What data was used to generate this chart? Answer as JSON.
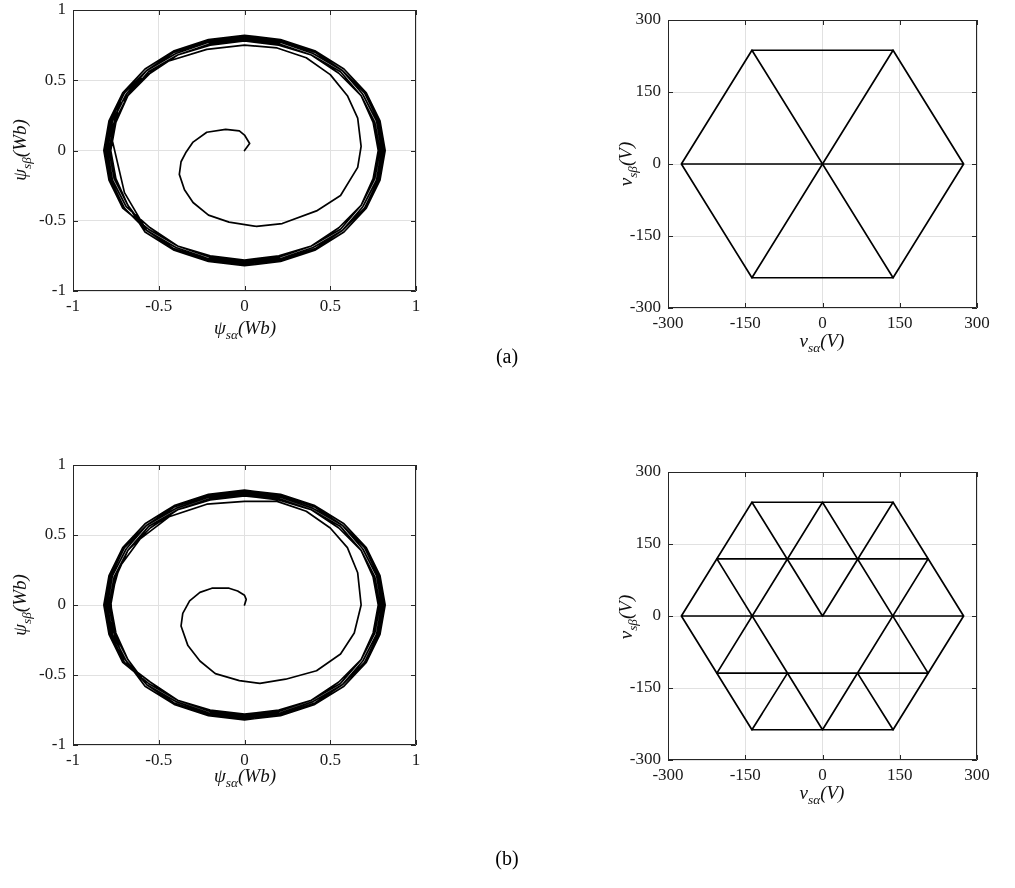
{
  "chart_data": [
    {
      "type": "line",
      "xlabel": "ψ$_{sα}$(Wb)",
      "ylabel": "ψ$_{sβ}$(Wb)",
      "xlim": [
        -1,
        1
      ],
      "ylim": [
        -1,
        1
      ],
      "xticks": [
        -1,
        -0.5,
        0,
        0.5,
        1
      ],
      "yticks": [
        -1,
        -0.5,
        0,
        0.5,
        1
      ],
      "grid": true,
      "marker": "none",
      "annotations": [
        "(a)"
      ],
      "series": [
        {
          "color": "#000000",
          "x": [
            0,
            0.03,
            0,
            -0.03,
            -0.11,
            -0.22,
            -0.3,
            -0.34,
            -0.37,
            -0.38,
            -0.35,
            -0.3,
            -0.21,
            -0.09,
            0.07,
            0.22,
            0.42,
            0.56,
            0.66,
            0.68,
            0.66,
            0.6,
            0.5,
            0.36,
            0.19,
            0,
            -0.22,
            -0.46,
            -0.61,
            -0.73,
            -0.78,
            -0.7,
            -0.57,
            -0.4,
            -0.21,
            0,
            0.21,
            0.4,
            0.57,
            0.69,
            0.77,
            0.8,
            0.77,
            0.69,
            0.57,
            0.4,
            0.21,
            0,
            -0.21,
            -0.4,
            -0.57,
            -0.69,
            -0.77,
            -0.8,
            -0.77,
            -0.69,
            -0.55,
            -0.39,
            -0.2,
            0,
            0.2,
            0.39,
            0.55,
            0.68,
            0.75,
            0.78,
            0.75,
            0.68,
            0.55,
            0.39,
            0.2,
            0,
            -0.2,
            -0.39,
            -0.55,
            -0.68,
            -0.75,
            -0.78,
            -0.75,
            -0.68,
            -0.58,
            -0.41,
            -0.21,
            0,
            0.21,
            0.41,
            0.58,
            0.71,
            0.79,
            0.82,
            0.79,
            0.71,
            0.58,
            0.41,
            0.21,
            0,
            -0.21,
            -0.41,
            -0.58,
            -0.71,
            -0.79,
            -0.82,
            -0.79,
            -0.71,
            -0.56,
            -0.39,
            -0.2,
            0,
            0.2,
            0.39,
            0.56,
            0.68,
            0.76,
            0.79,
            0.76,
            0.68,
            0.56,
            0.39,
            0.2,
            0,
            -0.2,
            -0.39,
            -0.56,
            -0.68,
            -0.76,
            -0.79,
            -0.76,
            -0.68,
            -0.57,
            -0.41,
            -0.21,
            0,
            0.21,
            0.41,
            0.57,
            0.7,
            0.78,
            0.81,
            0.78,
            0.7,
            0.57,
            0.41,
            0.21,
            0,
            -0.21,
            -0.41,
            -0.57,
            -0.7,
            -0.78,
            -0.81,
            -0.78,
            -0.7,
            -0.57
          ],
          "values": [
            0,
            0.05,
            0.11,
            0.14,
            0.15,
            0.13,
            0.06,
            -0.01,
            -0.08,
            -0.17,
            -0.28,
            -0.37,
            -0.46,
            -0.51,
            -0.54,
            -0.52,
            -0.43,
            -0.32,
            -0.12,
            0.03,
            0.23,
            0.39,
            0.54,
            0.66,
            0.73,
            0.75,
            0.72,
            0.63,
            0.5,
            0.32,
            0.12,
            -0.3,
            -0.57,
            -0.69,
            -0.77,
            -0.8,
            -0.77,
            -0.69,
            -0.57,
            -0.4,
            -0.21,
            0,
            0.21,
            0.4,
            0.57,
            0.69,
            0.77,
            0.8,
            0.77,
            0.69,
            0.57,
            0.4,
            0.21,
            0,
            -0.21,
            -0.4,
            -0.55,
            -0.68,
            -0.75,
            -0.78,
            -0.75,
            -0.68,
            -0.55,
            -0.39,
            -0.2,
            0,
            0.2,
            0.39,
            0.55,
            0.68,
            0.75,
            0.78,
            0.75,
            0.68,
            0.55,
            0.39,
            0.2,
            0,
            -0.2,
            -0.39,
            -0.58,
            -0.71,
            -0.79,
            -0.82,
            -0.79,
            -0.71,
            -0.58,
            -0.41,
            -0.21,
            0,
            0.21,
            0.41,
            0.58,
            0.71,
            0.79,
            0.82,
            0.79,
            0.71,
            0.58,
            0.41,
            0.21,
            0,
            -0.21,
            -0.41,
            -0.56,
            -0.68,
            -0.76,
            -0.79,
            -0.76,
            -0.68,
            -0.56,
            -0.39,
            -0.2,
            0,
            0.2,
            0.39,
            0.56,
            0.68,
            0.76,
            0.79,
            0.76,
            0.68,
            0.56,
            0.39,
            0.2,
            0,
            -0.2,
            -0.39,
            -0.57,
            -0.7,
            -0.78,
            -0.81,
            -0.78,
            -0.7,
            -0.57,
            -0.41,
            -0.21,
            0,
            0.21,
            0.41,
            0.57,
            0.7,
            0.78,
            0.81,
            0.78,
            0.7,
            0.57,
            0.41,
            0.21,
            0,
            -0.21,
            -0.41,
            -0.57
          ]
        }
      ]
    },
    {
      "type": "line",
      "xlabel": "v$_{sα}$(V)",
      "ylabel": "v$_{sβ}$(V)",
      "xlim": [
        -300,
        300
      ],
      "ylim": [
        -300,
        300
      ],
      "xticks": [
        -300,
        -150,
        0,
        150,
        300
      ],
      "yticks": [
        -300,
        -150,
        0,
        150,
        300
      ],
      "grid": true,
      "marker": "none",
      "series": [
        {
          "color": "#000000",
          "x": [
            274,
            137,
            -137,
            -274,
            -137,
            137,
            274,
            -274
          ],
          "values": [
            0,
            237,
            237,
            0,
            -237,
            -237,
            0,
            0
          ]
        },
        {
          "color": "#000000",
          "x": [
            -137,
            137
          ],
          "values": [
            237,
            -237
          ]
        },
        {
          "color": "#000000",
          "x": [
            137,
            -137
          ],
          "values": [
            237,
            -237
          ]
        }
      ]
    },
    {
      "type": "line",
      "xlabel": "ψ$_{sα}$(Wb)",
      "ylabel": "ψ$_{sβ}$(Wb)",
      "xlim": [
        -1,
        1
      ],
      "ylim": [
        -1,
        1
      ],
      "xticks": [
        -1,
        -0.5,
        0,
        0.5,
        1
      ],
      "yticks": [
        -1,
        -0.5,
        0,
        0.5,
        1
      ],
      "grid": true,
      "marker": "none",
      "annotations": [
        "(b)"
      ],
      "series": [
        {
          "color": "#000000",
          "x": [
            0,
            0.01,
            0,
            -0.04,
            -0.09,
            -0.19,
            -0.26,
            -0.32,
            -0.36,
            -0.37,
            -0.33,
            -0.26,
            -0.17,
            -0.03,
            0.09,
            0.24,
            0.42,
            0.56,
            0.64,
            0.68,
            0.66,
            0.6,
            0.5,
            0.36,
            0.19,
            0,
            -0.22,
            -0.44,
            -0.61,
            -0.73,
            -0.78,
            -0.77,
            -0.71,
            -0.57,
            -0.4,
            -0.21,
            0,
            0.21,
            0.4,
            0.57,
            0.69,
            0.77,
            0.8,
            0.77,
            0.69,
            0.57,
            0.4,
            0.21,
            0,
            -0.21,
            -0.4,
            -0.57,
            -0.69,
            -0.77,
            -0.8,
            -0.77,
            -0.69,
            -0.58,
            -0.41,
            -0.21,
            0,
            0.21,
            0.41,
            0.58,
            0.71,
            0.79,
            0.82,
            0.79,
            0.71,
            0.58,
            0.41,
            0.21,
            0,
            -0.21,
            -0.41,
            -0.58,
            -0.71,
            -0.79,
            -0.82,
            -0.79,
            -0.71,
            -0.56,
            -0.39,
            -0.2,
            0,
            0.2,
            0.39,
            0.56,
            0.68,
            0.76,
            0.79,
            0.76,
            0.68,
            0.56,
            0.39,
            0.2,
            0,
            -0.2,
            -0.39,
            -0.56,
            -0.68,
            -0.76,
            -0.79,
            -0.76,
            -0.68,
            -0.57,
            -0.41,
            -0.21,
            0,
            0.21,
            0.41,
            0.57,
            0.7,
            0.78,
            0.81,
            0.78,
            0.7,
            0.57,
            0.41,
            0.21,
            0,
            -0.21,
            -0.41,
            -0.57,
            -0.7,
            -0.78,
            -0.81,
            -0.78,
            -0.7,
            -0.55,
            -0.39,
            -0.2,
            0,
            0.2,
            0.39,
            0.55,
            0.68,
            0.75,
            0.78,
            0.75,
            0.68,
            0.55,
            0.39,
            0.2,
            0,
            -0.2,
            -0.39,
            -0.55,
            -0.68,
            -0.75,
            -0.78,
            -0.75,
            -0.68,
            -0.57
          ],
          "values": [
            0,
            0.04,
            0.07,
            0.1,
            0.12,
            0.12,
            0.09,
            0.03,
            -0.06,
            -0.15,
            -0.29,
            -0.4,
            -0.49,
            -0.54,
            -0.56,
            -0.53,
            -0.47,
            -0.35,
            -0.2,
            0,
            0.23,
            0.41,
            0.55,
            0.67,
            0.74,
            0.74,
            0.72,
            0.63,
            0.47,
            0.27,
            0.05,
            -0.17,
            -0.37,
            -0.57,
            -0.69,
            -0.77,
            -0.8,
            -0.77,
            -0.69,
            -0.57,
            -0.4,
            -0.21,
            0,
            0.21,
            0.4,
            0.57,
            0.69,
            0.77,
            0.8,
            0.77,
            0.69,
            0.57,
            0.4,
            0.21,
            0,
            -0.21,
            -0.4,
            -0.58,
            -0.71,
            -0.79,
            -0.82,
            -0.79,
            -0.71,
            -0.58,
            -0.41,
            -0.21,
            0,
            0.21,
            0.41,
            0.58,
            0.71,
            0.79,
            0.82,
            0.79,
            0.71,
            0.58,
            0.41,
            0.21,
            0,
            -0.21,
            -0.41,
            -0.56,
            -0.68,
            -0.76,
            -0.79,
            -0.76,
            -0.68,
            -0.56,
            -0.39,
            -0.2,
            0,
            0.2,
            0.39,
            0.56,
            0.68,
            0.76,
            0.79,
            0.76,
            0.68,
            0.56,
            0.39,
            0.2,
            0,
            -0.2,
            -0.39,
            -0.57,
            -0.7,
            -0.78,
            -0.81,
            -0.78,
            -0.7,
            -0.57,
            -0.41,
            -0.21,
            0,
            0.21,
            0.41,
            0.57,
            0.7,
            0.78,
            0.81,
            0.78,
            0.7,
            0.57,
            0.41,
            0.21,
            0,
            -0.21,
            -0.41,
            -0.55,
            -0.68,
            -0.75,
            -0.78,
            -0.75,
            -0.68,
            -0.55,
            -0.39,
            -0.2,
            0,
            0.2,
            0.39,
            0.55,
            0.68,
            0.75,
            0.78,
            0.75,
            0.68,
            0.55,
            0.39,
            0.2,
            0,
            -0.2,
            -0.39,
            -0.57
          ]
        }
      ]
    },
    {
      "type": "line",
      "xlabel": "v$_{sα}$(V)",
      "ylabel": "v$_{sβ}$(V)",
      "xlim": [
        -300,
        300
      ],
      "ylim": [
        -300,
        300
      ],
      "xticks": [
        -300,
        -150,
        0,
        150,
        300
      ],
      "yticks": [
        -300,
        -150,
        0,
        150,
        300
      ],
      "grid": true,
      "marker": "none",
      "series": [
        {
          "color": "#000000",
          "x": [
            274,
            137,
            -137,
            -274,
            -137,
            137,
            274,
            -274
          ],
          "values": [
            0,
            237,
            237,
            0,
            -237,
            -237,
            0,
            0
          ]
        },
        {
          "color": "#000000",
          "x": [
            -205,
            205
          ],
          "values": [
            119,
            119
          ]
        },
        {
          "color": "#000000",
          "x": [
            -205,
            205
          ],
          "values": [
            -119,
            -119
          ]
        },
        {
          "color": "#000000",
          "x": [
            -137,
            0,
            137
          ],
          "values": [
            237,
            0,
            237
          ]
        },
        {
          "color": "#000000",
          "x": [
            -205,
            0,
            205
          ],
          "values": [
            119,
            -237,
            119
          ]
        },
        {
          "color": "#000000",
          "x": [
            -205,
            0,
            205
          ],
          "values": [
            -119,
            237,
            -119
          ]
        },
        {
          "color": "#000000",
          "x": [
            -137,
            -68
          ],
          "values": [
            -237,
            -119
          ]
        },
        {
          "color": "#000000",
          "x": [
            68,
            137
          ],
          "values": [
            -119,
            -237
          ]
        }
      ]
    }
  ]
}
